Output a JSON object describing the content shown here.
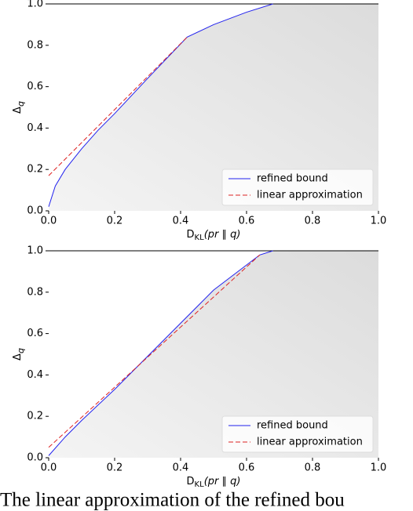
{
  "chart_data": [
    {
      "type": "line",
      "xlabel": [
        "D",
        "KL",
        "(pr ∥ q)"
      ],
      "ylabel": [
        "Δ",
        "q"
      ],
      "xlim": [
        0,
        1
      ],
      "ylim": [
        0,
        1
      ],
      "xticks": [
        {
          "value": 0,
          "label": "0.0"
        },
        0.2,
        0.4,
        0.6,
        0.8,
        {
          "value": 1,
          "label": "1.0"
        }
      ],
      "yticks": [
        {
          "value": 0,
          "label": "0.0"
        },
        0.2,
        0.4,
        0.6,
        0.8,
        {
          "value": 1,
          "label": "1.0"
        }
      ],
      "legend": "lower right",
      "series": [
        {
          "name": "refined bound",
          "color": "#2222ee",
          "style": "solid",
          "x": [
            0,
            0.02,
            0.05,
            0.1,
            0.15,
            0.2,
            0.3,
            0.42,
            0.5,
            0.6,
            0.68
          ],
          "values": [
            0.02,
            0.12,
            0.2,
            0.3,
            0.39,
            0.47,
            0.64,
            0.84,
            0.9,
            0.96,
            1.0
          ]
        },
        {
          "name": "linear approximation",
          "color": "#dd2222",
          "style": "dashed",
          "x": [
            0,
            0.42
          ],
          "values": [
            0.17,
            0.84
          ]
        }
      ]
    },
    {
      "type": "line",
      "xlabel": [
        "D",
        "KL",
        "(pr ∥ q)"
      ],
      "ylabel": [
        "Δ",
        "q"
      ],
      "xlim": [
        0,
        1
      ],
      "ylim": [
        0,
        1
      ],
      "xticks": [
        {
          "value": 0,
          "label": "0.0"
        },
        0.2,
        0.4,
        0.6,
        0.8,
        {
          "value": 1,
          "label": "1.0"
        }
      ],
      "yticks": [
        {
          "value": 0,
          "label": "0.0"
        },
        0.2,
        0.4,
        0.6,
        0.8,
        {
          "value": 1,
          "label": "1.0"
        }
      ],
      "legend": "lower right",
      "series": [
        {
          "name": "refined bound",
          "color": "#2222ee",
          "style": "solid",
          "x": [
            0,
            0.05,
            0.1,
            0.2,
            0.3,
            0.4,
            0.5,
            0.64,
            0.68
          ],
          "values": [
            0.01,
            0.1,
            0.18,
            0.33,
            0.49,
            0.65,
            0.81,
            0.98,
            1.0
          ]
        },
        {
          "name": "linear approximation",
          "color": "#dd2222",
          "style": "dashed",
          "x": [
            0,
            0.64
          ],
          "values": [
            0.05,
            0.98
          ]
        }
      ]
    }
  ],
  "caption": "The linear approximation of the refined bou"
}
